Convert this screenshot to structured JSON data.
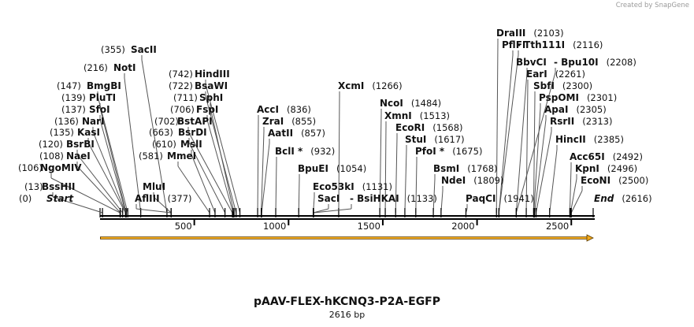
{
  "credit": {
    "text": "Created by",
    "brand": "SnapGene"
  },
  "plasmid": {
    "name": "pAAV-FLEX-hKCNQ3-P2A-EGFP",
    "size_label": "2616 bp",
    "length": 2616
  },
  "colors": {
    "feature_arrow": "#f0a81c",
    "backbone": "#000000"
  },
  "axis_ticks": [
    {
      "pos": 500,
      "label": "500"
    },
    {
      "pos": 1000,
      "label": "1000"
    },
    {
      "pos": 1500,
      "label": "1500"
    },
    {
      "pos": 2000,
      "label": "2000"
    },
    {
      "pos": 2500,
      "label": "2500"
    }
  ],
  "sites": [
    {
      "name": "Start",
      "pos": 0,
      "pos_label": "(0)",
      "italic": true
    },
    {
      "name": "BssHII",
      "pos": 13,
      "pos_label": "(13)"
    },
    {
      "name": "NgoMIV",
      "pos": 106,
      "pos_label": "(106)"
    },
    {
      "name": "NaeI",
      "pos": 108,
      "pos_label": "(108)"
    },
    {
      "name": "BsrBI",
      "pos": 120,
      "pos_label": "(120)"
    },
    {
      "name": "KasI",
      "pos": 135,
      "pos_label": "(135)"
    },
    {
      "name": "NarI",
      "pos": 136,
      "pos_label": "(136)"
    },
    {
      "name": "SfoI",
      "pos": 137,
      "pos_label": "(137)"
    },
    {
      "name": "PluTI",
      "pos": 139,
      "pos_label": "(139)"
    },
    {
      "name": "BmgBI",
      "pos": 147,
      "pos_label": "(147)"
    },
    {
      "name": "NotI",
      "pos": 216,
      "pos_label": "(216)"
    },
    {
      "name": "SacII",
      "pos": 355,
      "pos_label": "(355)"
    },
    {
      "name": "AflIII",
      "pos": 377,
      "pos_label": "(377)"
    },
    {
      "name": "MluI",
      "pos": 377,
      "pos_label": ""
    },
    {
      "name": "MmeI",
      "pos": 581,
      "pos_label": "(581)"
    },
    {
      "name": "MslI",
      "pos": 610,
      "pos_label": "(610)"
    },
    {
      "name": "BsrDI",
      "pos": 663,
      "pos_label": "(663)"
    },
    {
      "name": "BstAPI",
      "pos": 702,
      "pos_label": "(702)"
    },
    {
      "name": "FspI",
      "pos": 706,
      "pos_label": "(706)"
    },
    {
      "name": "SphI",
      "pos": 711,
      "pos_label": "(711)"
    },
    {
      "name": "BsaWI",
      "pos": 722,
      "pos_label": "(722)"
    },
    {
      "name": "HindIII",
      "pos": 742,
      "pos_label": "(742)"
    },
    {
      "name": "AccI",
      "pos": 836,
      "pos_label": "(836)"
    },
    {
      "name": "ZraI",
      "pos": 855,
      "pos_label": "(855)"
    },
    {
      "name": "AatII",
      "pos": 857,
      "pos_label": "(857)"
    },
    {
      "name": "BclI *",
      "pos": 932,
      "pos_label": "(932)"
    },
    {
      "name": "BpuEI",
      "pos": 1054,
      "pos_label": "(1054)"
    },
    {
      "name": "XcmI",
      "pos": 1266,
      "pos_label": "(1266)"
    },
    {
      "name": "Eco53kI",
      "pos": 1131,
      "pos_label": "(1131)"
    },
    {
      "name": "SacI",
      "pos": 1131,
      "pos_label": ""
    },
    {
      "name": "- BsiHKAI",
      "pos": 1133,
      "pos_label": "(1133)"
    },
    {
      "name": "NcoI",
      "pos": 1484,
      "pos_label": "(1484)"
    },
    {
      "name": "XmnI",
      "pos": 1513,
      "pos_label": "(1513)"
    },
    {
      "name": "EcoRI",
      "pos": 1568,
      "pos_label": "(1568)"
    },
    {
      "name": "StuI",
      "pos": 1617,
      "pos_label": "(1617)"
    },
    {
      "name": "PfoI *",
      "pos": 1675,
      "pos_label": "(1675)"
    },
    {
      "name": "BsmI",
      "pos": 1768,
      "pos_label": "(1768)"
    },
    {
      "name": "NdeI",
      "pos": 1809,
      "pos_label": "(1809)"
    },
    {
      "name": "PaqCI",
      "pos": 1941,
      "pos_label": "(1941)"
    },
    {
      "name": "DraIII",
      "pos": 2103,
      "pos_label": "(2103)"
    },
    {
      "name": "PflFI",
      "pos": 2116,
      "pos_label": ""
    },
    {
      "name": "- Tth111I",
      "pos": 2116,
      "pos_label": "(2116)"
    },
    {
      "name": "BbvCI",
      "pos": 2208,
      "pos_label": ""
    },
    {
      "name": "- Bpu10I",
      "pos": 2208,
      "pos_label": "(2208)"
    },
    {
      "name": "EarI",
      "pos": 2261,
      "pos_label": "(2261)"
    },
    {
      "name": "SbfI",
      "pos": 2300,
      "pos_label": "(2300)"
    },
    {
      "name": "PspOMI",
      "pos": 2301,
      "pos_label": "(2301)"
    },
    {
      "name": "ApaI",
      "pos": 2305,
      "pos_label": "(2305)"
    },
    {
      "name": "RsrII",
      "pos": 2313,
      "pos_label": "(2313)"
    },
    {
      "name": "HincII",
      "pos": 2385,
      "pos_label": "(2385)"
    },
    {
      "name": "Acc65I",
      "pos": 2492,
      "pos_label": "(2492)"
    },
    {
      "name": "KpnI",
      "pos": 2496,
      "pos_label": "(2496)"
    },
    {
      "name": "EcoNI",
      "pos": 2500,
      "pos_label": "(2500)"
    },
    {
      "name": "End",
      "pos": 2616,
      "pos_label": "(2616)",
      "italic": true
    }
  ]
}
